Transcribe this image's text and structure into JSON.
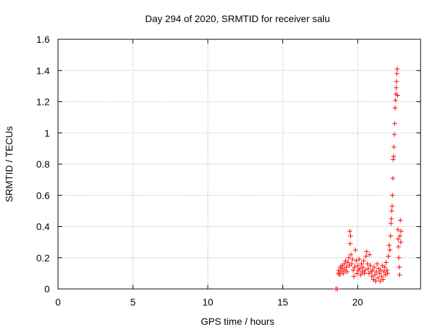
{
  "chart_data": {
    "type": "scatter",
    "title": "Day 294 of 2020, SRMTID for receiver salu",
    "xlabel": "GPS time / hours",
    "ylabel": "SRMTID / TECUs",
    "xlim": [
      0,
      24.2
    ],
    "ylim": [
      0,
      1.6
    ],
    "xticks": [
      0,
      5,
      10,
      15,
      20
    ],
    "xtick_labels": [
      "0",
      "5",
      "10",
      "15",
      "20"
    ],
    "yticks": [
      0,
      0.2,
      0.4,
      0.6,
      0.8,
      1,
      1.2,
      1.4,
      1.6
    ],
    "ytick_labels": [
      "0",
      "0.2",
      "0.4",
      "0.6",
      "0.8",
      "1",
      "1.2",
      "1.4",
      "1.6"
    ],
    "grid": true,
    "marker": "+",
    "color": "#ff0000",
    "series": [
      {
        "name": "SRMTID",
        "points": [
          [
            18.55,
            0.0
          ],
          [
            18.65,
            0.0
          ],
          [
            18.7,
            0.1
          ],
          [
            18.75,
            0.12
          ],
          [
            18.8,
            0.09
          ],
          [
            18.85,
            0.14
          ],
          [
            18.9,
            0.11
          ],
          [
            18.95,
            0.15
          ],
          [
            19.0,
            0.13
          ],
          [
            19.05,
            0.1
          ],
          [
            19.1,
            0.16
          ],
          [
            19.15,
            0.12
          ],
          [
            19.2,
            0.18
          ],
          [
            19.25,
            0.14
          ],
          [
            19.3,
            0.11
          ],
          [
            19.35,
            0.17
          ],
          [
            19.4,
            0.2
          ],
          [
            19.45,
            0.15
          ],
          [
            19.48,
            0.37
          ],
          [
            19.5,
            0.29
          ],
          [
            19.52,
            0.34
          ],
          [
            19.55,
            0.22
          ],
          [
            19.6,
            0.16
          ],
          [
            19.65,
            0.19
          ],
          [
            19.7,
            0.12
          ],
          [
            19.75,
            0.08
          ],
          [
            19.8,
            0.14
          ],
          [
            19.85,
            0.25
          ],
          [
            19.9,
            0.18
          ],
          [
            19.95,
            0.1
          ],
          [
            20.0,
            0.15
          ],
          [
            20.05,
            0.12
          ],
          [
            20.1,
            0.19
          ],
          [
            20.15,
            0.13
          ],
          [
            20.2,
            0.09
          ],
          [
            20.25,
            0.16
          ],
          [
            20.3,
            0.11
          ],
          [
            20.35,
            0.14
          ],
          [
            20.4,
            0.18
          ],
          [
            20.45,
            0.1
          ],
          [
            20.5,
            0.12
          ],
          [
            20.55,
            0.21
          ],
          [
            20.6,
            0.24
          ],
          [
            20.65,
            0.16
          ],
          [
            20.7,
            0.13
          ],
          [
            20.75,
            0.1
          ],
          [
            20.8,
            0.22
          ],
          [
            20.85,
            0.15
          ],
          [
            20.9,
            0.11
          ],
          [
            20.95,
            0.08
          ],
          [
            21.0,
            0.12
          ],
          [
            21.05,
            0.06
          ],
          [
            21.1,
            0.14
          ],
          [
            21.15,
            0.09
          ],
          [
            21.2,
            0.05
          ],
          [
            21.25,
            0.11
          ],
          [
            21.3,
            0.16
          ],
          [
            21.35,
            0.07
          ],
          [
            21.4,
            0.13
          ],
          [
            21.45,
            0.1
          ],
          [
            21.5,
            0.05
          ],
          [
            21.55,
            0.12
          ],
          [
            21.6,
            0.08
          ],
          [
            21.65,
            0.15
          ],
          [
            21.7,
            0.06
          ],
          [
            21.75,
            0.11
          ],
          [
            21.8,
            0.14
          ],
          [
            21.85,
            0.09
          ],
          [
            21.9,
            0.17
          ],
          [
            21.95,
            0.12
          ],
          [
            22.0,
            0.1
          ],
          [
            22.05,
            0.21
          ],
          [
            22.1,
            0.28
          ],
          [
            22.15,
            0.25
          ],
          [
            22.2,
            0.34
          ],
          [
            22.22,
            0.42
          ],
          [
            22.25,
            0.45
          ],
          [
            22.27,
            0.5
          ],
          [
            22.3,
            0.53
          ],
          [
            22.32,
            0.6
          ],
          [
            22.35,
            0.71
          ],
          [
            22.37,
            0.83
          ],
          [
            22.4,
            0.85
          ],
          [
            22.42,
            0.91
          ],
          [
            22.45,
            0.99
          ],
          [
            22.47,
            1.06
          ],
          [
            22.5,
            1.16
          ],
          [
            22.52,
            1.21
          ],
          [
            22.55,
            1.25
          ],
          [
            22.57,
            1.29
          ],
          [
            22.6,
            1.33
          ],
          [
            22.62,
            1.38
          ],
          [
            22.64,
            1.41
          ],
          [
            22.66,
            1.24
          ],
          [
            22.68,
            0.38
          ],
          [
            22.7,
            0.32
          ],
          [
            22.72,
            0.27
          ],
          [
            22.75,
            0.2
          ],
          [
            22.78,
            0.14
          ],
          [
            22.8,
            0.09
          ],
          [
            22.82,
            0.34
          ],
          [
            22.85,
            0.44
          ],
          [
            22.88,
            0.3
          ],
          [
            22.9,
            0.37
          ]
        ]
      }
    ]
  }
}
